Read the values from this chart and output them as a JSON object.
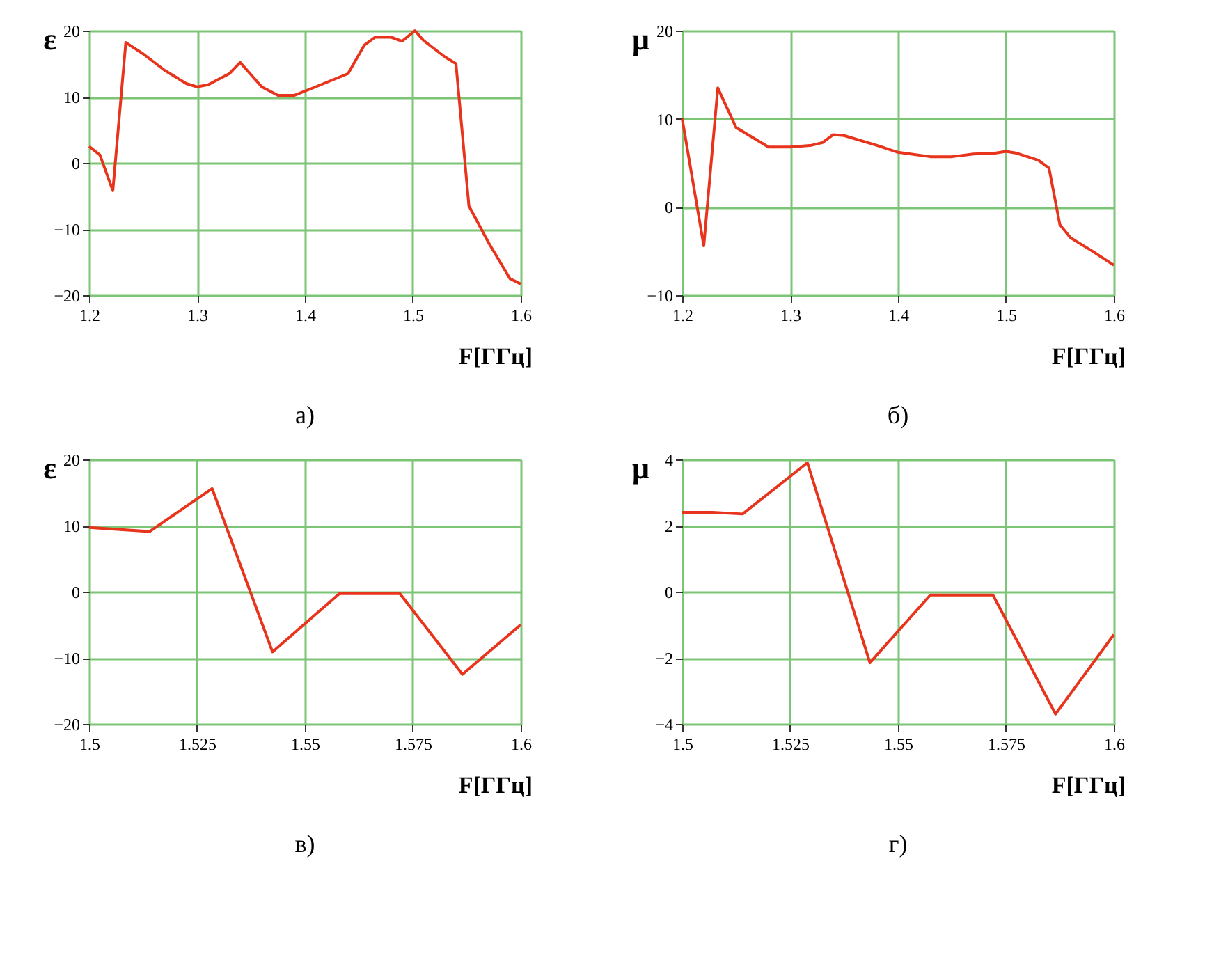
{
  "chart_data": [
    {
      "type": "line",
      "title": "а)",
      "xlabel": "F[ГГц]",
      "ylabel": "ε",
      "grid": true,
      "line_style": "solid",
      "xlim": [
        1.2,
        1.6
      ],
      "xticks": [
        1.2,
        1.3,
        1.4,
        1.5,
        1.6
      ],
      "ylim": [
        -20,
        20
      ],
      "yticks": [
        -20,
        -10,
        0,
        10,
        20
      ],
      "x": [
        1.2,
        1.21,
        1.222,
        1.234,
        1.25,
        1.27,
        1.29,
        1.3,
        1.31,
        1.33,
        1.34,
        1.36,
        1.375,
        1.39,
        1.41,
        1.44,
        1.455,
        1.465,
        1.48,
        1.49,
        1.502,
        1.51,
        1.53,
        1.54,
        1.552,
        1.57,
        1.59,
        1.6
      ],
      "series": [
        {
          "color": "#e8341c",
          "values": [
            2.5,
            1.2,
            -4.2,
            18.2,
            16.5,
            14,
            12,
            11.5,
            11.8,
            13.5,
            15.2,
            11.5,
            10.2,
            10.2,
            11.5,
            13.5,
            17.8,
            19,
            19,
            18.4,
            20,
            18.5,
            16,
            15,
            -6.5,
            -12,
            -17.5,
            -18.3
          ]
        }
      ]
    },
    {
      "type": "line",
      "title": "б)",
      "xlabel": "F[ГГц]",
      "ylabel": "μ",
      "grid": true,
      "line_style": "solid",
      "xlim": [
        1.2,
        1.6
      ],
      "xticks": [
        1.2,
        1.3,
        1.4,
        1.5,
        1.6
      ],
      "ylim": [
        -10,
        20
      ],
      "yticks": [
        -10,
        0,
        10,
        20
      ],
      "x": [
        1.2,
        1.22,
        1.233,
        1.25,
        1.28,
        1.3,
        1.32,
        1.33,
        1.34,
        1.35,
        1.38,
        1.4,
        1.43,
        1.45,
        1.47,
        1.49,
        1.5,
        1.51,
        1.53,
        1.54,
        1.55,
        1.56,
        1.58,
        1.6
      ],
      "series": [
        {
          "color": "#e8341c",
          "values": [
            10,
            -4.4,
            13.5,
            9,
            6.8,
            6.8,
            7,
            7.3,
            8.2,
            8.1,
            7,
            6.2,
            5.7,
            5.7,
            6,
            6.1,
            6.3,
            6.1,
            5.3,
            4.4,
            -2,
            -3.5,
            -5,
            -6.6
          ]
        }
      ]
    },
    {
      "type": "line",
      "title": "в)",
      "xlabel": "F[ГГц]",
      "ylabel": "ε",
      "grid": true,
      "line_style": "solid",
      "xlim": [
        1.5,
        1.6
      ],
      "xticks": [
        1.5,
        1.525,
        1.55,
        1.575,
        1.6
      ],
      "ylim": [
        -20,
        20
      ],
      "yticks": [
        -20,
        -10,
        0,
        10,
        20
      ],
      "x": [
        1.5,
        1.514,
        1.5285,
        1.5425,
        1.558,
        1.572,
        1.5865,
        1.6
      ],
      "series": [
        {
          "color": "#e8341c",
          "values": [
            9.7,
            9.1,
            15.6,
            -9.1,
            -0.3,
            -0.3,
            -12.5,
            -5
          ]
        }
      ]
    },
    {
      "type": "line",
      "title": "г)",
      "xlabel": "F[ГГц]",
      "ylabel": "μ",
      "grid": true,
      "line_style": "solid",
      "xlim": [
        1.5,
        1.6
      ],
      "xticks": [
        1.5,
        1.525,
        1.55,
        1.575,
        1.6
      ],
      "ylim": [
        -4,
        4
      ],
      "yticks": [
        -4,
        -2,
        0,
        2,
        4
      ],
      "x": [
        1.5,
        1.507,
        1.514,
        1.529,
        1.5435,
        1.5575,
        1.572,
        1.5865,
        1.6
      ],
      "series": [
        {
          "color": "#e8341c",
          "values": [
            2.4,
            2.4,
            2.35,
            3.9,
            -2.15,
            -0.1,
            -0.1,
            -3.7,
            -1.3
          ]
        }
      ]
    }
  ]
}
